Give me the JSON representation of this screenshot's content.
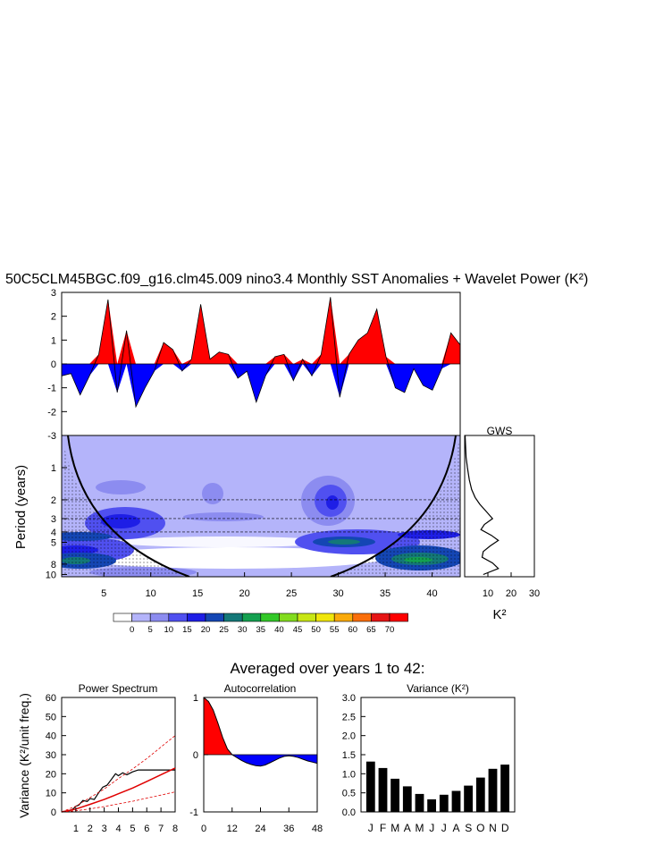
{
  "title": "50C5CLM45BGC.f09_g16.clm45.009 nino3.4 Monthly SST Anomalies + Wavelet Power (K²)",
  "subtitle": "Averaged over years 1 to 42:",
  "chart_data": [
    {
      "id": "timeseries",
      "type": "area",
      "x": [
        0,
        1,
        2,
        3,
        4,
        5,
        6,
        7,
        8,
        9,
        10,
        11,
        12,
        13,
        14,
        15,
        16,
        17,
        18,
        19,
        20,
        21,
        22,
        23,
        24,
        25,
        26,
        27,
        28,
        29,
        30,
        31,
        32,
        33,
        34,
        35,
        36,
        37,
        38,
        39,
        40,
        41,
        42,
        43
      ],
      "values": [
        -0.5,
        -0.4,
        -1.3,
        -0.5,
        0.4,
        2.7,
        -1.2,
        1.4,
        -1.8,
        -1.0,
        -0.3,
        0.9,
        0.6,
        -0.3,
        0.2,
        2.5,
        0.2,
        0.5,
        0.4,
        -0.6,
        -0.3,
        -1.6,
        -0.5,
        0.3,
        0.4,
        -0.7,
        0.2,
        -0.5,
        0.4,
        2.8,
        -1.4,
        0.4,
        1.0,
        1.3,
        2.3,
        0.3,
        -1.0,
        -1.2,
        -0.2,
        -0.9,
        -1.1,
        -0.2,
        1.3,
        0.8
      ],
      "colors": {
        "positive": "#ff0000",
        "negative": "#0000ff"
      },
      "ylim": [
        -3,
        3
      ],
      "yticks": [
        "3",
        "2",
        "1",
        "0",
        "-1",
        "-2",
        "-3"
      ]
    },
    {
      "id": "wavelet",
      "type": "heatmap",
      "ylabel": "Period (years)",
      "xticks": [
        "5",
        "10",
        "15",
        "20",
        "25",
        "30",
        "35",
        "40"
      ],
      "yticks": [
        "1",
        "2",
        "3",
        "4",
        "5",
        "8",
        "10"
      ],
      "ylim": [
        0.5,
        10.5
      ],
      "xlim": [
        0.5,
        43
      ],
      "scale": "log",
      "colorbar": {
        "labels": [
          "0",
          "5",
          "10",
          "15",
          "20",
          "25",
          "30",
          "35",
          "40",
          "45",
          "50",
          "55",
          "60",
          "65",
          "70"
        ],
        "colors": [
          "#ffffff",
          "#b4b4fa",
          "#8c8cf0",
          "#5050f0",
          "#1e1ee6",
          "#1446b4",
          "#147878",
          "#14a050",
          "#32c828",
          "#82dc1e",
          "#c8e614",
          "#f0e60a",
          "#faaa0a",
          "#fa6e0a",
          "#e61414",
          "#ff0000"
        ]
      },
      "dashed_periods": [
        2,
        3,
        4
      ]
    },
    {
      "id": "gws",
      "type": "line",
      "title": "GWS",
      "xlabel": "K²",
      "xticks": [
        "10",
        "20",
        "30"
      ],
      "xlim": [
        0,
        30
      ],
      "period": [
        0.5,
        0.8,
        1.0,
        1.3,
        1.6,
        1.9,
        2.2,
        2.6,
        3.0,
        3.4,
        3.8,
        4.3,
        4.8,
        5.4,
        6.1,
        6.9,
        7.8,
        8.8,
        10.0
      ],
      "power": [
        0.2,
        0.6,
        1.2,
        2.0,
        3.0,
        4.5,
        6.5,
        9.5,
        12.0,
        8.5,
        7.0,
        11.5,
        14.5,
        11.0,
        8.0,
        7.5,
        12.0,
        14.5,
        8.0
      ]
    },
    {
      "id": "power_spectrum",
      "type": "line",
      "title": "Power Spectrum",
      "ylabel": "Variance (K²/unit freq.)",
      "xticks": [
        "1",
        "2",
        "3",
        "4",
        "5",
        "6",
        "7",
        "8"
      ],
      "yticks": [
        "0",
        "10",
        "20",
        "30",
        "40",
        "50",
        "60"
      ],
      "xlim": [
        0,
        8
      ],
      "ylim": [
        0,
        60
      ],
      "series": [
        {
          "style": "black",
          "x": [
            0.5,
            0.8,
            1.0,
            1.2,
            1.5,
            1.8,
            2.0,
            2.3,
            2.6,
            2.9,
            3.2,
            3.5,
            3.8,
            4.0,
            4.3,
            4.6,
            5.0,
            5.4,
            5.8,
            6.2,
            6.6,
            7.0,
            7.5,
            8.0
          ],
          "y": [
            0.5,
            1.5,
            3,
            3.5,
            6,
            5.5,
            7,
            6.5,
            10,
            13,
            14,
            17,
            20,
            19,
            20.5,
            19.5,
            21,
            22,
            22,
            22,
            22,
            22,
            22,
            22
          ]
        },
        {
          "style": "red",
          "x": [
            0,
            1,
            2,
            3,
            4,
            5,
            6,
            7,
            8
          ],
          "y": [
            0,
            1.5,
            4,
            6.5,
            9.5,
            12.5,
            16,
            19.5,
            23
          ]
        },
        {
          "style": "red-dash",
          "x": [
            0,
            1,
            2,
            3,
            4,
            5,
            6,
            7,
            8
          ],
          "y": [
            0,
            3,
            7.5,
            12,
            17.5,
            22.5,
            28,
            34,
            40
          ]
        },
        {
          "style": "red-dash",
          "x": [
            0,
            1,
            2,
            3,
            4,
            5,
            6,
            7,
            8
          ],
          "y": [
            0,
            0.6,
            1.6,
            2.8,
            4.2,
            5.6,
            7.2,
            8.8,
            10.5
          ]
        }
      ]
    },
    {
      "id": "autocorrelation",
      "type": "area",
      "title": "Autocorrelation",
      "xticks": [
        "0",
        "12",
        "24",
        "36",
        "48"
      ],
      "yticks": [
        "1",
        "0",
        "-1"
      ],
      "xlim": [
        0,
        48
      ],
      "ylim": [
        -1,
        1
      ],
      "x": [
        0,
        2,
        4,
        6,
        8,
        10,
        12,
        14,
        16,
        18,
        20,
        22,
        24,
        26,
        28,
        30,
        32,
        34,
        36,
        38,
        40,
        42,
        44,
        46,
        48
      ],
      "values": [
        1.0,
        0.93,
        0.78,
        0.55,
        0.3,
        0.1,
        0.0,
        -0.05,
        -0.1,
        -0.14,
        -0.17,
        -0.19,
        -0.2,
        -0.18,
        -0.14,
        -0.1,
        -0.06,
        -0.03,
        -0.02,
        -0.03,
        -0.05,
        -0.08,
        -0.11,
        -0.13,
        -0.15
      ],
      "colors": {
        "positive": "#ff0000",
        "negative": "#0000ff"
      }
    },
    {
      "id": "variance",
      "type": "bar",
      "title": "Variance (K²)",
      "categories": [
        "J",
        "F",
        "M",
        "A",
        "M",
        "J",
        "J",
        "A",
        "S",
        "O",
        "N",
        "D"
      ],
      "values": [
        1.32,
        1.15,
        0.87,
        0.67,
        0.47,
        0.33,
        0.45,
        0.55,
        0.69,
        0.9,
        1.13,
        1.24
      ],
      "yticks": [
        "0.0",
        "0.5",
        "1.0",
        "1.5",
        "2.0",
        "2.5",
        "3.0"
      ],
      "ylim": [
        0,
        3
      ]
    }
  ]
}
